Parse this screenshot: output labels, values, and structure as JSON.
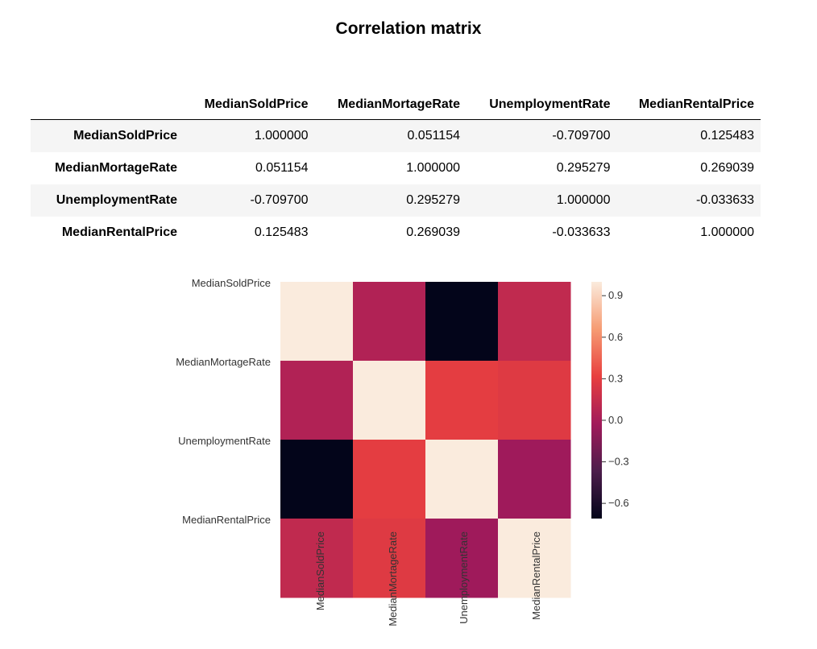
{
  "title": "Correlation matrix",
  "table": {
    "columns": [
      "MedianSoldPrice",
      "MedianMortageRate",
      "UnemploymentRate",
      "MedianRentalPrice"
    ],
    "rows": [
      {
        "label": "MedianSoldPrice",
        "values": [
          "1.000000",
          "0.051154",
          "-0.709700",
          "0.125483"
        ]
      },
      {
        "label": "MedianMortageRate",
        "values": [
          "0.051154",
          "1.000000",
          "0.295279",
          "0.269039"
        ]
      },
      {
        "label": "UnemploymentRate",
        "values": [
          "-0.709700",
          "0.295279",
          "1.000000",
          "-0.033633"
        ]
      },
      {
        "label": "MedianRentalPrice",
        "values": [
          "0.125483",
          "0.269039",
          "-0.033633",
          "1.000000"
        ]
      }
    ]
  },
  "chart_data": {
    "type": "heatmap",
    "x": [
      "MedianSoldPrice",
      "MedianMortageRate",
      "UnemploymentRate",
      "MedianRentalPrice"
    ],
    "y": [
      "MedianSoldPrice",
      "MedianMortageRate",
      "UnemploymentRate",
      "MedianRentalPrice"
    ],
    "values": [
      [
        1.0,
        0.051154,
        -0.7097,
        0.125483
      ],
      [
        0.051154,
        1.0,
        0.295279,
        0.269039
      ],
      [
        -0.7097,
        0.295279,
        1.0,
        -0.033633
      ],
      [
        0.125483,
        0.269039,
        -0.033633,
        1.0
      ]
    ],
    "vmin": -0.7097,
    "vmax": 1.0,
    "colorbar_ticks": [
      0.9,
      0.6,
      0.3,
      0.0,
      -0.3,
      -0.6
    ],
    "colorbar_tick_labels": [
      "0.9",
      "0.6",
      "0.3",
      "0.0",
      "−0.3",
      "−0.6"
    ],
    "colormap": "rocket",
    "colormap_stops": [
      "#03051a",
      "#4c1d4b",
      "#a11a5b",
      "#e83f3f",
      "#f69c73",
      "#faebdd"
    ]
  }
}
